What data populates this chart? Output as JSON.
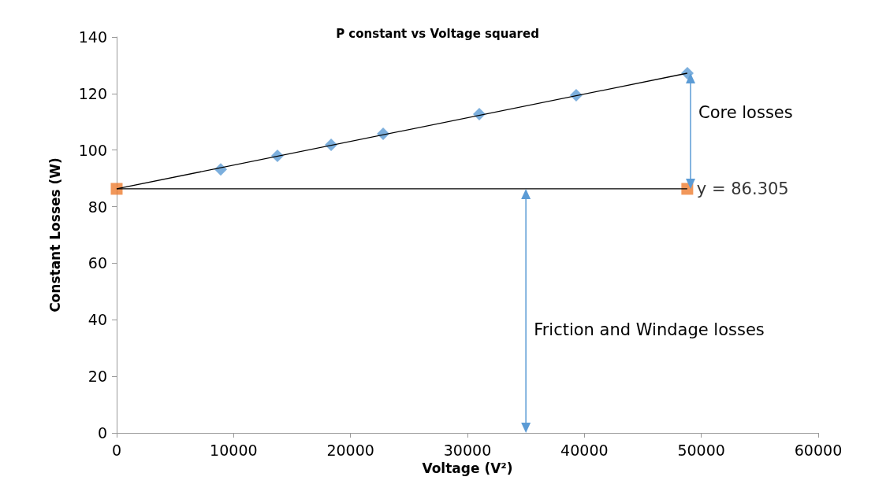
{
  "chart_data": {
    "type": "scatter",
    "title": "P constant vs Voltage squared",
    "xlabel": "Voltage (V²)",
    "ylabel": "Constant Losses (W)",
    "xlim": [
      0,
      60000
    ],
    "xticks": [
      0,
      {
        "value": 10000,
        "label": "10000"
      },
      {
        "value": 20000,
        "label": "20000"
      },
      {
        "value": 30000,
        "label": "30000"
      },
      {
        "value": 40000,
        "label": "40000"
      },
      {
        "value": 50000,
        "label": "50000"
      },
      {
        "value": 60000,
        "label": "60000"
      }
    ],
    "ylim": [
      0,
      140
    ],
    "yticks": [
      0,
      20,
      40,
      60,
      80,
      100,
      120,
      140
    ],
    "grid": false,
    "series": [
      {
        "marker": "diamond",
        "color": "#5b9bd5",
        "x": [
          8900,
          13750,
          18340,
          22790,
          31010,
          39300,
          48810
        ],
        "values": [
          93.2,
          98,
          101.9,
          105.8,
          112.7,
          119.4,
          127.2
        ]
      },
      {
        "marker": "square",
        "color": "#ed7d31",
        "x": [
          0,
          48800
        ],
        "values": [
          86.3,
          86.3
        ]
      },
      {
        "type": "line",
        "marker": "none",
        "color": "#000000",
        "x": [
          0,
          48800
        ],
        "values": [
          86.3,
          127.2
        ]
      },
      {
        "type": "line",
        "marker": "none",
        "color": "#000000",
        "x": [
          0,
          48800
        ],
        "values": [
          86.3,
          86.3
        ]
      }
    ],
    "annotations": [
      {
        "text": "y = 86.305",
        "x": 48800,
        "y": 86.305
      },
      "Core losses",
      "Friction and Windage losses"
    ]
  }
}
